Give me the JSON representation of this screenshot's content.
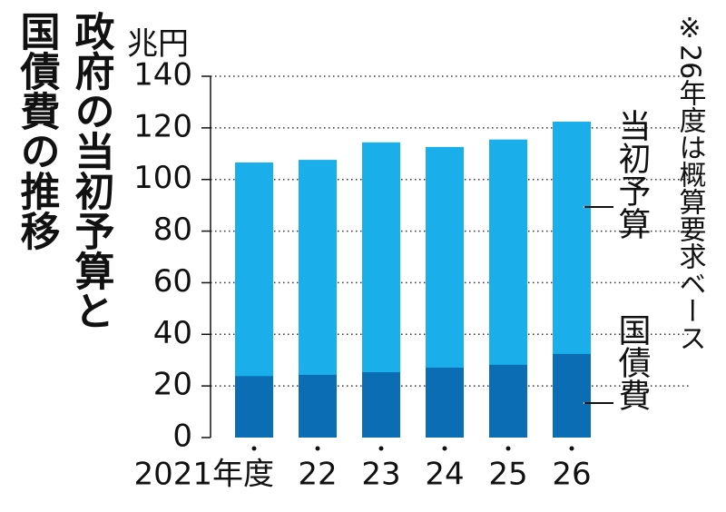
{
  "chart_data": {
    "type": "bar",
    "title": "政府の当初予算と国債費の推移",
    "title_lines": [
      "政府の当初予算と",
      "国債費の推移"
    ],
    "y_unit": "兆円",
    "note": "※26年度は概算要求ベース",
    "categories": [
      "2021年度",
      "22",
      "23",
      "24",
      "25",
      "26"
    ],
    "series": [
      {
        "name": "当初予算",
        "color": "#1aaeea",
        "values": [
          106.6,
          107.6,
          114.4,
          112.6,
          115.5,
          122.4
        ]
      },
      {
        "name": "国債費",
        "color": "#0b6db3",
        "values": [
          23.8,
          24.3,
          25.3,
          27.1,
          28.2,
          32.4
        ]
      }
    ],
    "stacked": false,
    "ylim": [
      0,
      140
    ],
    "yticks": [
      0,
      20,
      40,
      60,
      80,
      100,
      120,
      140
    ],
    "grid": true
  }
}
